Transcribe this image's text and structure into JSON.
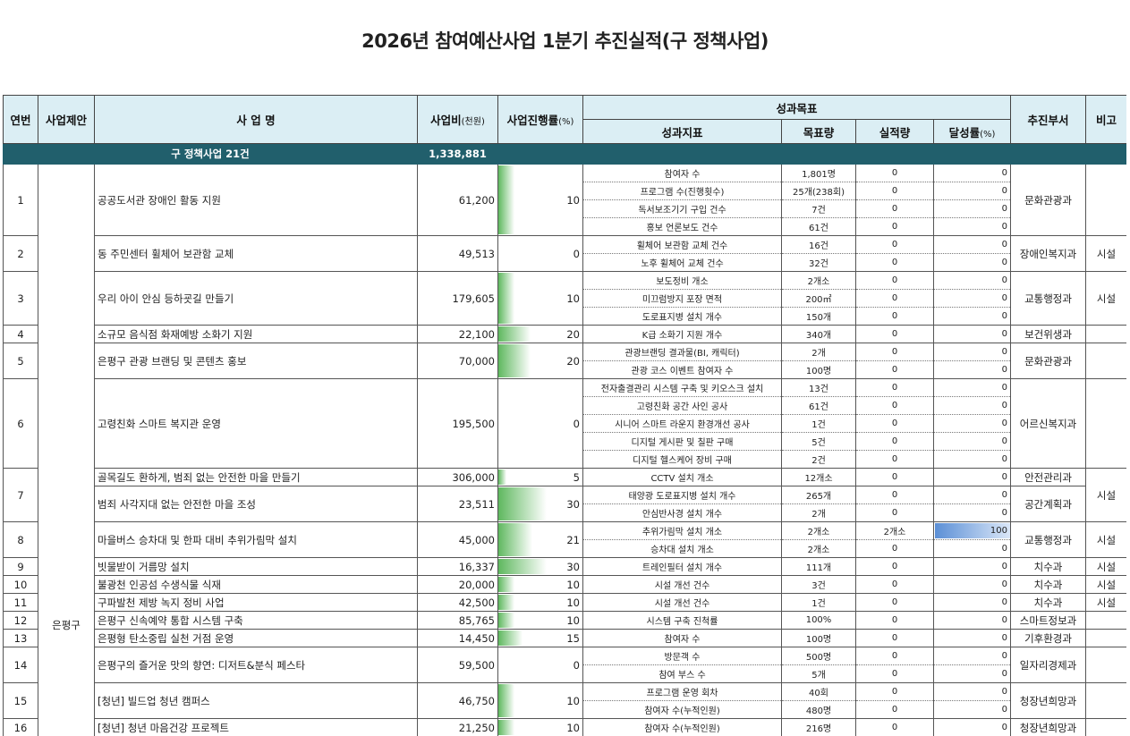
{
  "title": "2026년 참여예산사업 1분기 추진실적(구 정책사업)",
  "headers": {
    "year": "연번",
    "proposer": "사업제안",
    "name": "사 업 명",
    "budget": "사업비",
    "budget_unit": "(천원)",
    "progress": "사업진행률",
    "progress_unit": "(%)",
    "goal_group": "성과목표",
    "indicator": "성과지표",
    "target": "목표량",
    "actual": "실적량",
    "achieve": "달성률",
    "achieve_unit": "(%)",
    "dept": "추진부서",
    "note": "비고"
  },
  "summary": {
    "label": "구 정책사업 21건",
    "budget": "1,338,881"
  },
  "proposer": "은평구",
  "projects": [
    {
      "no": "1",
      "name": "공공도서관 장애인 활동 지원",
      "budget": "61,200",
      "progress": 10,
      "dept": "문화관광과",
      "note": "",
      "rows": [
        {
          "ind": "참여자 수",
          "tgt": "1,801명",
          "act": "0",
          "ach": "0"
        },
        {
          "ind": "프로그램 수(진행횟수)",
          "tgt": "25개(238회)",
          "act": "0",
          "ach": "0"
        },
        {
          "ind": "독서보조기기 구입 건수",
          "tgt": "7건",
          "act": "0",
          "ach": "0"
        },
        {
          "ind": "홍보 언론보도 건수",
          "tgt": "61건",
          "act": "0",
          "ach": "0"
        }
      ]
    },
    {
      "no": "2",
      "name": "동 주민센터 휠체어 보관함 교체",
      "budget": "49,513",
      "progress": 0,
      "dept": "장애인복지과",
      "note": "시설",
      "rows": [
        {
          "ind": "휠체어 보관함 교체 건수",
          "tgt": "16건",
          "act": "0",
          "ach": "0"
        },
        {
          "ind": "노후 휠체어 교체 건수",
          "tgt": "32건",
          "act": "0",
          "ach": "0"
        }
      ]
    },
    {
      "no": "3",
      "name": "우리 아이 안심 등하굣길 만들기",
      "budget": "179,605",
      "progress": 10,
      "dept": "교통행정과",
      "note": "시설",
      "rows": [
        {
          "ind": "보도정비 개소",
          "tgt": "2개소",
          "act": "0",
          "ach": "0"
        },
        {
          "ind": "미끄럼방지 포장 면적",
          "tgt": "200㎡",
          "act": "0",
          "ach": "0"
        },
        {
          "ind": "도로표지병 설치 개수",
          "tgt": "150개",
          "act": "0",
          "ach": "0"
        }
      ]
    },
    {
      "no": "4",
      "name": "소규모 음식점 화재예방 소화기 지원",
      "budget": "22,100",
      "progress": 20,
      "dept": "보건위생과",
      "note": "",
      "rows": [
        {
          "ind": "K급 소화기 지원 개수",
          "tgt": "340개",
          "act": "0",
          "ach": "0"
        }
      ]
    },
    {
      "no": "5",
      "name": "은평구 관광 브랜딩 및 콘텐츠 홍보",
      "budget": "70,000",
      "progress": 20,
      "dept": "문화관광과",
      "note": "",
      "rows": [
        {
          "ind": "관광브랜딩 결과물(BI, 캐릭터)",
          "tgt": "2개",
          "act": "0",
          "ach": "0"
        },
        {
          "ind": "관광 코스 이벤트 참여자 수",
          "tgt": "100명",
          "act": "0",
          "ach": "0"
        }
      ]
    },
    {
      "no": "6",
      "name": "고령친화 스마트 복지관 운영",
      "budget": "195,500",
      "progress": 0,
      "dept": "어르신복지과",
      "note": "",
      "rows": [
        {
          "ind": "전자출결관리 시스템 구축 및 키오스크 설치",
          "tgt": "13건",
          "act": "0",
          "ach": "0"
        },
        {
          "ind": "고령친화 공간 사인 공사",
          "tgt": "61건",
          "act": "0",
          "ach": "0"
        },
        {
          "ind": "시니어 스마트 라운지 환경개선 공사",
          "tgt": "1건",
          "act": "0",
          "ach": "0"
        },
        {
          "ind": "디지털 게시판 및 칠판 구매",
          "tgt": "5건",
          "act": "0",
          "ach": "0"
        },
        {
          "ind": "디지털 헬스케어 장비 구매",
          "tgt": "2건",
          "act": "0",
          "ach": "0"
        }
      ]
    },
    {
      "no": "7",
      "name": "골목길도 환하게, 범죄 없는 안전한 마을 만들기",
      "budget": "306,000",
      "progress": 5,
      "dept": "안전관리과",
      "note": "시설",
      "rows": [
        {
          "ind": "CCTV 설치 개소",
          "tgt": "12개소",
          "act": "0",
          "ach": "0"
        }
      ]
    },
    {
      "no": "",
      "name": "범죄 사각지대 없는 안전한 마을 조성",
      "budget": "23,511",
      "progress": 30,
      "dept": "공간계획과",
      "note": "",
      "rows": [
        {
          "ind": "태양광 도로표지병 설치 개수",
          "tgt": "265개",
          "act": "0",
          "ach": "0"
        },
        {
          "ind": "안심반사경 설치 개수",
          "tgt": "2개",
          "act": "0",
          "ach": "0"
        }
      ]
    },
    {
      "no": "8",
      "name": "마을버스 승차대 및 한파 대비 추위가림막 설치",
      "budget": "45,000",
      "progress": 21,
      "dept": "교통행정과",
      "note": "시설",
      "rows": [
        {
          "ind": "추위가림막 설치 개소",
          "tgt": "2개소",
          "act": "2개소",
          "ach": "100"
        },
        {
          "ind": "승차대 설치 개소",
          "tgt": "2개소",
          "act": "0",
          "ach": "0"
        }
      ]
    },
    {
      "no": "9",
      "name": "빗물받이 거름망 설치",
      "budget": "16,337",
      "progress": 30,
      "dept": "치수과",
      "note": "시설",
      "rows": [
        {
          "ind": "트레인필터 설치 개수",
          "tgt": "111개",
          "act": "0",
          "ach": "0"
        }
      ]
    },
    {
      "no": "10",
      "name": "불광천 인공섬 수생식물 식재",
      "budget": "20,000",
      "progress": 10,
      "dept": "치수과",
      "note": "시설",
      "rows": [
        {
          "ind": "시설 개선 건수",
          "tgt": "3건",
          "act": "0",
          "ach": "0"
        }
      ]
    },
    {
      "no": "11",
      "name": "구파발천 제방 녹지 정비 사업",
      "budget": "42,500",
      "progress": 10,
      "dept": "치수과",
      "note": "시설",
      "rows": [
        {
          "ind": "시설 개선 건수",
          "tgt": "1건",
          "act": "0",
          "ach": "0"
        }
      ]
    },
    {
      "no": "12",
      "name": "은평구 신속예약 통합 시스템 구축",
      "budget": "85,765",
      "progress": 10,
      "dept": "스마트정보과",
      "note": "",
      "rows": [
        {
          "ind": "시스템 구축 진척률",
          "tgt": "100%",
          "act": "0",
          "ach": "0"
        }
      ]
    },
    {
      "no": "13",
      "name": "은평형 탄소중립 실천 거점 운영",
      "budget": "14,450",
      "progress": 15,
      "dept": "기후환경과",
      "note": "",
      "rows": [
        {
          "ind": "참여자 수",
          "tgt": "100명",
          "act": "0",
          "ach": "0"
        }
      ]
    },
    {
      "no": "14",
      "name": "은평구의 즐거운 맛의 향연: 디저트&분식 페스타",
      "budget": "59,500",
      "progress": 0,
      "dept": "일자리경제과",
      "note": "",
      "rows": [
        {
          "ind": "방문객 수",
          "tgt": "500명",
          "act": "0",
          "ach": "0"
        },
        {
          "ind": "참여 부스 수",
          "tgt": "5개",
          "act": "0",
          "ach": "0"
        }
      ]
    },
    {
      "no": "15",
      "name": "[청년] 빌드업 청년 캠퍼스",
      "budget": "46,750",
      "progress": 10,
      "dept": "청장년희망과",
      "note": "",
      "rows": [
        {
          "ind": "프로그램 운영 회차",
          "tgt": "40회",
          "act": "0",
          "ach": "0"
        },
        {
          "ind": "참여자 수(누적인원)",
          "tgt": "480명",
          "act": "0",
          "ach": "0"
        }
      ]
    },
    {
      "no": "16",
      "name": "[청년] 청년 마음건강 프로젝트",
      "budget": "21,250",
      "progress": 10,
      "dept": "청장년희망과",
      "note": "",
      "rows": [
        {
          "ind": "참여자 수(누적인원)",
          "tgt": "216명",
          "act": "0",
          "ach": "0"
        }
      ]
    }
  ]
}
